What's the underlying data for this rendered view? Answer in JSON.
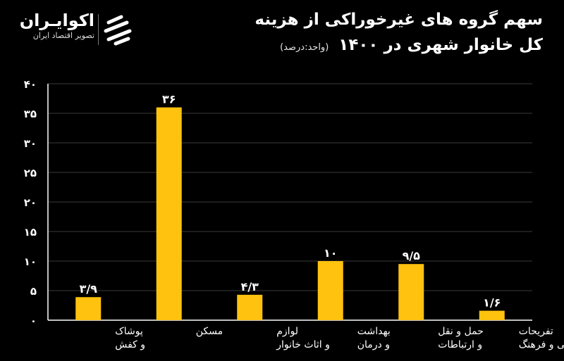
{
  "brand": {
    "name": "اکوایـران",
    "tagline": "تصویر اقتصاد ایران"
  },
  "colors": {
    "bar": "#FFC20E",
    "background": "#000000",
    "grid": "#1a1a1a",
    "axis": "#FFFFFF"
  },
  "chart_data": {
    "type": "bar",
    "title_line1": "سهم گروه های غیرخوراکی از هزینه",
    "title_line2": "کل خانوار شهری در ۱۴۰۰",
    "unit": "(واحد:درصد)",
    "categories": [
      [
        "پوشاک",
        "و کفش"
      ],
      [
        "مسکن"
      ],
      [
        "لوازم",
        "و اثاث خانوار"
      ],
      [
        "بهداشت",
        "و درمان"
      ],
      [
        "حمل و نقل",
        "و ارتباطات"
      ],
      [
        "تفریحات",
        "سرگرمی و فرهنگ"
      ]
    ],
    "values": [
      3.9,
      36,
      4.3,
      10,
      9.5,
      1.6
    ],
    "value_labels": [
      "۳/۹",
      "۳۶",
      "۴/۳",
      "۱۰",
      "۹/۵",
      "۱/۶"
    ],
    "y_ticks": [
      0,
      5,
      10,
      15,
      20,
      25,
      30,
      35,
      40
    ],
    "y_tick_labels": [
      "۰",
      "۵",
      "۱۰",
      "۱۵",
      "۲۰",
      "۲۵",
      "۳۰",
      "۳۵",
      "۴۰"
    ],
    "ylim": [
      0,
      40
    ],
    "grid": true
  }
}
